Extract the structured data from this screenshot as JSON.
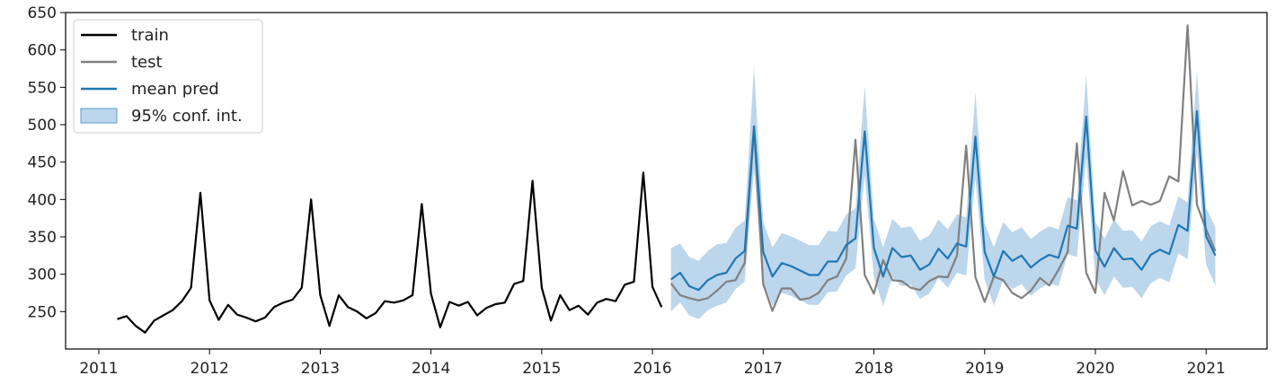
{
  "chart_data": {
    "type": "line",
    "title": "",
    "xlabel": "",
    "ylabel": "",
    "xlim": [
      2010.7,
      2021.55
    ],
    "ylim": [
      200,
      650
    ],
    "grid": false,
    "legend_position": "top-left",
    "x_ticks": [
      "2011",
      "2012",
      "2013",
      "2014",
      "2015",
      "2016",
      "2017",
      "2018",
      "2019",
      "2020",
      "2021"
    ],
    "y_ticks": [
      "250",
      "300",
      "350",
      "400",
      "450",
      "500",
      "550",
      "600",
      "650"
    ],
    "colors": {
      "train": "#000000",
      "test": "#808080",
      "mean_pred": "#1f77b4",
      "conf_band": "#8fbbe0"
    },
    "series": [
      {
        "name": "train",
        "x": [
          2011.167,
          2011.25,
          2011.333,
          2011.417,
          2011.5,
          2011.583,
          2011.667,
          2011.75,
          2011.833,
          2011.917,
          2012.0,
          2012.083,
          2012.167,
          2012.25,
          2012.333,
          2012.417,
          2012.5,
          2012.583,
          2012.667,
          2012.75,
          2012.833,
          2012.917,
          2013.0,
          2013.083,
          2013.167,
          2013.25,
          2013.333,
          2013.417,
          2013.5,
          2013.583,
          2013.667,
          2013.75,
          2013.833,
          2013.917,
          2014.0,
          2014.083,
          2014.167,
          2014.25,
          2014.333,
          2014.417,
          2014.5,
          2014.583,
          2014.667,
          2014.75,
          2014.833,
          2014.917,
          2015.0,
          2015.083,
          2015.167,
          2015.25,
          2015.333,
          2015.417,
          2015.5,
          2015.583,
          2015.667,
          2015.75,
          2015.833,
          2015.917,
          2016.0,
          2016.083
        ],
        "values": [
          240,
          244,
          231,
          222,
          238,
          245,
          252,
          264,
          282,
          409,
          265,
          239,
          259,
          246,
          242,
          237,
          242,
          256,
          262,
          266,
          282,
          400,
          272,
          231,
          272,
          256,
          250,
          241,
          248,
          264,
          262,
          265,
          272,
          394,
          274,
          229,
          263,
          258,
          263,
          245,
          255,
          260,
          262,
          287,
          291,
          425,
          282,
          238,
          272,
          252,
          258,
          246,
          262,
          267,
          264,
          286,
          290,
          436,
          283,
          256
        ]
      },
      {
        "name": "test",
        "x": [
          2016.167,
          2016.25,
          2016.333,
          2016.417,
          2016.5,
          2016.583,
          2016.667,
          2016.75,
          2016.833,
          2016.917,
          2017.0,
          2017.083,
          2017.167,
          2017.25,
          2017.333,
          2017.417,
          2017.5,
          2017.583,
          2017.667,
          2017.75,
          2017.833,
          2017.917,
          2018.0,
          2018.083,
          2018.167,
          2018.25,
          2018.333,
          2018.417,
          2018.5,
          2018.583,
          2018.667,
          2018.75,
          2018.833,
          2018.917,
          2019.0,
          2019.083,
          2019.167,
          2019.25,
          2019.333,
          2019.417,
          2019.5,
          2019.583,
          2019.667,
          2019.75,
          2019.833,
          2019.917,
          2020.0,
          2020.083,
          2020.167,
          2020.25,
          2020.333,
          2020.417,
          2020.5,
          2020.583,
          2020.667,
          2020.75,
          2020.833,
          2020.917,
          2021.0,
          2021.083
        ],
        "values": [
          288,
          272,
          268,
          265,
          268,
          278,
          290,
          292,
          315,
          495,
          287,
          251,
          281,
          281,
          266,
          268,
          275,
          292,
          297,
          321,
          480,
          299,
          274,
          319,
          292,
          291,
          282,
          279,
          291,
          297,
          296,
          325,
          472,
          296,
          263,
          297,
          292,
          275,
          268,
          278,
          295,
          285,
          306,
          330,
          475,
          302,
          275,
          409,
          372,
          438,
          392,
          398,
          393,
          398,
          431,
          424,
          633,
          393,
          360,
          331
        ]
      },
      {
        "name": "mean pred",
        "x": [
          2016.167,
          2016.25,
          2016.333,
          2016.417,
          2016.5,
          2016.583,
          2016.667,
          2016.75,
          2016.833,
          2016.917,
          2017.0,
          2017.083,
          2017.167,
          2017.25,
          2017.333,
          2017.417,
          2017.5,
          2017.583,
          2017.667,
          2017.75,
          2017.833,
          2017.917,
          2018.0,
          2018.083,
          2018.167,
          2018.25,
          2018.333,
          2018.417,
          2018.5,
          2018.583,
          2018.667,
          2018.75,
          2018.833,
          2018.917,
          2019.0,
          2019.083,
          2019.167,
          2019.25,
          2019.333,
          2019.417,
          2019.5,
          2019.583,
          2019.667,
          2019.75,
          2019.833,
          2019.917,
          2020.0,
          2020.083,
          2020.167,
          2020.25,
          2020.333,
          2020.417,
          2020.5,
          2020.583,
          2020.667,
          2020.75,
          2020.833,
          2020.917,
          2021.0,
          2021.083
        ],
        "values": [
          293,
          302,
          284,
          279,
          292,
          299,
          302,
          321,
          331,
          498,
          330,
          297,
          315,
          311,
          305,
          299,
          299,
          317,
          317,
          339,
          348,
          491,
          335,
          297,
          335,
          323,
          325,
          306,
          313,
          334,
          321,
          341,
          337,
          484,
          330,
          297,
          331,
          318,
          325,
          309,
          319,
          326,
          322,
          365,
          361,
          511,
          332,
          310,
          335,
          320,
          321,
          306,
          326,
          333,
          327,
          366,
          358,
          518,
          351,
          325
        ]
      },
      {
        "name": "95% conf. int.",
        "x": [
          2016.167,
          2016.25,
          2016.333,
          2016.417,
          2016.5,
          2016.583,
          2016.667,
          2016.75,
          2016.833,
          2016.917,
          2017.0,
          2017.083,
          2017.167,
          2017.25,
          2017.333,
          2017.417,
          2017.5,
          2017.583,
          2017.667,
          2017.75,
          2017.833,
          2017.917,
          2018.0,
          2018.083,
          2018.167,
          2018.25,
          2018.333,
          2018.417,
          2018.5,
          2018.583,
          2018.667,
          2018.75,
          2018.833,
          2018.917,
          2019.0,
          2019.083,
          2019.167,
          2019.25,
          2019.333,
          2019.417,
          2019.5,
          2019.583,
          2019.667,
          2019.75,
          2019.833,
          2019.917,
          2020.0,
          2020.083,
          2020.167,
          2020.25,
          2020.333,
          2020.417,
          2020.5,
          2020.583,
          2020.667,
          2020.75,
          2020.833,
          2020.917,
          2021.0,
          2021.083
        ],
        "lower": [
          250,
          262,
          245,
          240,
          252,
          258,
          262,
          280,
          290,
          440,
          290,
          258,
          275,
          271,
          265,
          259,
          259,
          276,
          277,
          298,
          308,
          432,
          296,
          258,
          296,
          284,
          286,
          267,
          274,
          295,
          282,
          302,
          298,
          428,
          292,
          258,
          292,
          280,
          287,
          271,
          281,
          288,
          284,
          327,
          323,
          456,
          294,
          272,
          297,
          282,
          283,
          268,
          288,
          295,
          289,
          328,
          320,
          462,
          313,
          285
        ],
        "upper": [
          335,
          341,
          323,
          318,
          331,
          340,
          342,
          362,
          372,
          577,
          370,
          336,
          355,
          351,
          345,
          339,
          339,
          358,
          357,
          380,
          388,
          552,
          374,
          336,
          374,
          362,
          364,
          345,
          352,
          373,
          360,
          380,
          376,
          543,
          368,
          336,
          370,
          356,
          363,
          347,
          357,
          364,
          360,
          403,
          399,
          566,
          370,
          348,
          373,
          358,
          359,
          344,
          364,
          371,
          365,
          404,
          396,
          572,
          389,
          363
        ]
      }
    ]
  },
  "legend": [
    {
      "label": "train",
      "kind": "line"
    },
    {
      "label": "test",
      "kind": "line"
    },
    {
      "label": "mean pred",
      "kind": "line"
    },
    {
      "label": "95% conf. int.",
      "kind": "patch"
    }
  ]
}
